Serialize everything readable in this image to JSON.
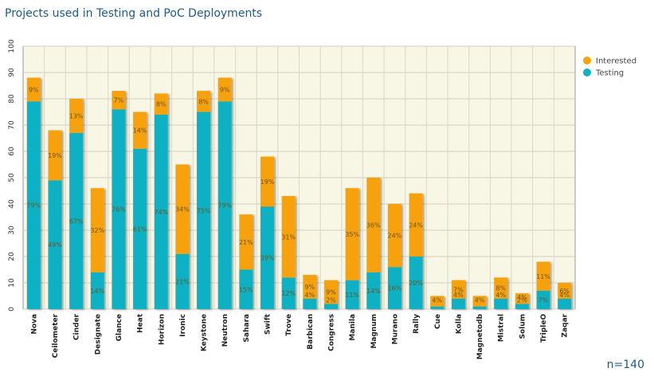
{
  "title": "Projects used in Testing and PoC Deployments",
  "note": "n=140",
  "chart_data": {
    "type": "bar",
    "stacked": true,
    "title": "Projects used in Testing and PoC Deployments",
    "xlabel": "",
    "ylabel": "",
    "ylim": [
      0,
      100
    ],
    "yticks": [
      0,
      10,
      20,
      30,
      40,
      50,
      60,
      70,
      80,
      90,
      100
    ],
    "grid": true,
    "legend": "top-right",
    "colors": {
      "Interested": "#f7a10e",
      "Testing": "#0fb1c3"
    },
    "categories": [
      "Nova",
      "Ceilometer",
      "Cinder",
      "Designate",
      "Glance",
      "Heat",
      "Horizon",
      "Ironic",
      "Keystone",
      "Neutron",
      "Sahara",
      "Swift",
      "Trove",
      "Barbican",
      "Congress",
      "Manila",
      "Magnum",
      "Murano",
      "Rally",
      "Cue",
      "Kolla",
      "Magnetodb",
      "Mistral",
      "Solum",
      "TripleO",
      "Zaqar"
    ],
    "series": [
      {
        "name": "Testing",
        "values": [
          79,
          49,
          67,
          14,
          76,
          61,
          74,
          21,
          75,
          79,
          15,
          39,
          12,
          4,
          2,
          11,
          14,
          16,
          20,
          1,
          4,
          1,
          4,
          2,
          7,
          4
        ],
        "labels": [
          "79%",
          "49%",
          "67%",
          "14%",
          "76%",
          "61%",
          "74%",
          "21%",
          "75%",
          "79%",
          "15%",
          "39%",
          "12%",
          "4%",
          "2%",
          "11%",
          "14%",
          "16%",
          "20%",
          "",
          "4%",
          "",
          "4%",
          "2%",
          "7%",
          "4%"
        ]
      },
      {
        "name": "Interested",
        "values": [
          9,
          19,
          13,
          32,
          7,
          14,
          8,
          34,
          8,
          9,
          21,
          19,
          31,
          9,
          9,
          35,
          36,
          24,
          24,
          4,
          7,
          4,
          8,
          4,
          11,
          6
        ],
        "labels": [
          "9%",
          "19%",
          "13%",
          "32%",
          "7%",
          "14%",
          "8%",
          "34%",
          "8%",
          "9%",
          "21%",
          "19%",
          "31%",
          "9%",
          "9%",
          "35%",
          "36%",
          "24%",
          "24%",
          "4%",
          "7%",
          "4%",
          "8%",
          "4%",
          "11%",
          "6%"
        ]
      }
    ]
  }
}
